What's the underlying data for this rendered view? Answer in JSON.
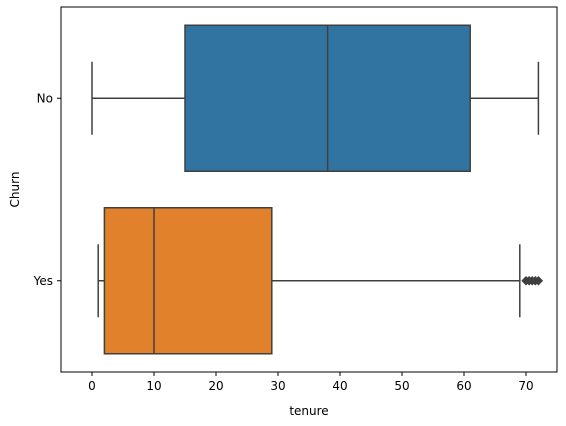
{
  "chart_data": {
    "type": "boxplot",
    "orientation": "horizontal",
    "xlabel": "tenure",
    "ylabel": "Churn",
    "xlim": [
      -5,
      75
    ],
    "x_ticks": [
      0,
      10,
      20,
      30,
      40,
      50,
      60,
      70
    ],
    "categories": [
      "No",
      "Yes"
    ],
    "series": [
      {
        "name": "No",
        "color": "#3274a1",
        "whisker_low": 0,
        "q1": 15,
        "median": 38,
        "q3": 61,
        "whisker_high": 72,
        "outliers": []
      },
      {
        "name": "Yes",
        "color": "#e1812c",
        "whisker_low": 1,
        "q1": 2,
        "median": 10,
        "q3": 29,
        "whisker_high": 69,
        "outliers": [
          70,
          70.5,
          71,
          71.5,
          72
        ]
      }
    ],
    "grid": false,
    "legend": "none"
  }
}
